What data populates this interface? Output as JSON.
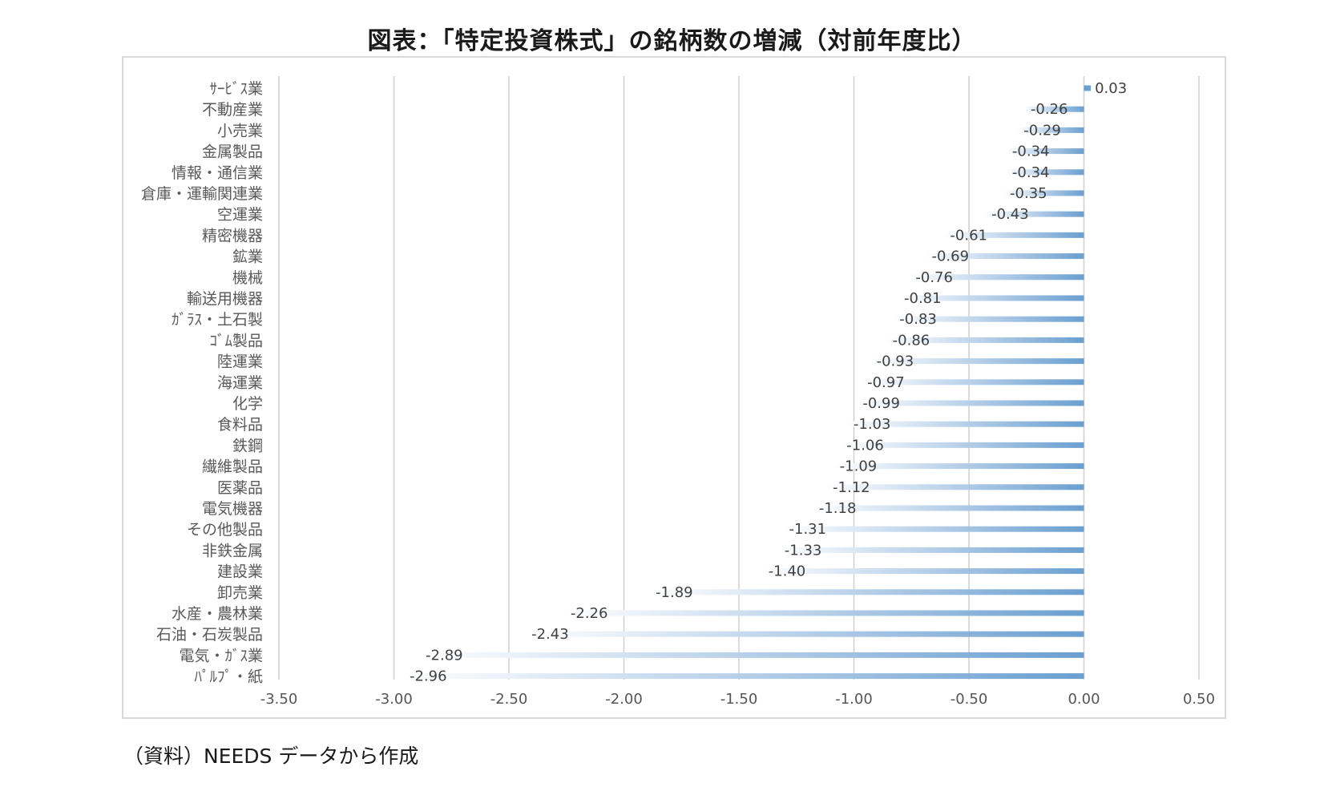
{
  "title": "図表：「特定投資株式」の銘柄数の増減（対前年度比）",
  "source": "（資料）NEEDS データから作成",
  "chart_data": {
    "type": "bar",
    "orientation": "horizontal",
    "title": "",
    "xlabel": "",
    "ylabel": "",
    "xlim": [
      -3.5,
      0.5
    ],
    "x_ticks": [
      "-3.50",
      "-3.00",
      "-2.50",
      "-2.00",
      "-1.50",
      "-1.00",
      "-0.50",
      "0.00",
      "0.50"
    ],
    "x_tick_values": [
      -3.5,
      -3.0,
      -2.5,
      -2.0,
      -1.5,
      -1.0,
      -0.5,
      0.0,
      0.5
    ],
    "grid": "vertical",
    "bar_color": "#6a9fd0",
    "categories": [
      "ｻｰﾋﾞｽ業",
      "不動産業",
      "小売業",
      "金属製品",
      "情報・通信業",
      "倉庫・運輸関連業",
      "空運業",
      "精密機器",
      "鉱業",
      "機械",
      "輸送用機器",
      "ｶﾞﾗｽ・土石製",
      "ｺﾞﾑ製品",
      "陸運業",
      "海運業",
      "化学",
      "食料品",
      "鉄鋼",
      "繊維製品",
      "医薬品",
      "電気機器",
      "その他製品",
      "非鉄金属",
      "建設業",
      "卸売業",
      "水産・農林業",
      "石油・石炭製品",
      "電気・ｶﾞｽ業",
      "ﾊﾟﾙﾌﾟ・紙"
    ],
    "values": [
      0.03,
      -0.26,
      -0.29,
      -0.34,
      -0.34,
      -0.35,
      -0.43,
      -0.61,
      -0.69,
      -0.76,
      -0.81,
      -0.83,
      -0.86,
      -0.93,
      -0.97,
      -0.99,
      -1.03,
      -1.06,
      -1.09,
      -1.12,
      -1.18,
      -1.31,
      -1.33,
      -1.4,
      -1.89,
      -2.26,
      -2.43,
      -2.89,
      -2.96
    ],
    "value_labels": [
      "0.03",
      "-0.26",
      "-0.29",
      "-0.34",
      "-0.34",
      "-0.35",
      "-0.43",
      "-0.61",
      "-0.69",
      "-0.76",
      "-0.81",
      "-0.83",
      "-0.86",
      "-0.93",
      "-0.97",
      "-0.99",
      "-1.03",
      "-1.06",
      "-1.09",
      "-1.12",
      "-1.18",
      "-1.31",
      "-1.33",
      "-1.40",
      "-1.89",
      "-2.26",
      "-2.43",
      "-2.89",
      "-2.96"
    ]
  }
}
